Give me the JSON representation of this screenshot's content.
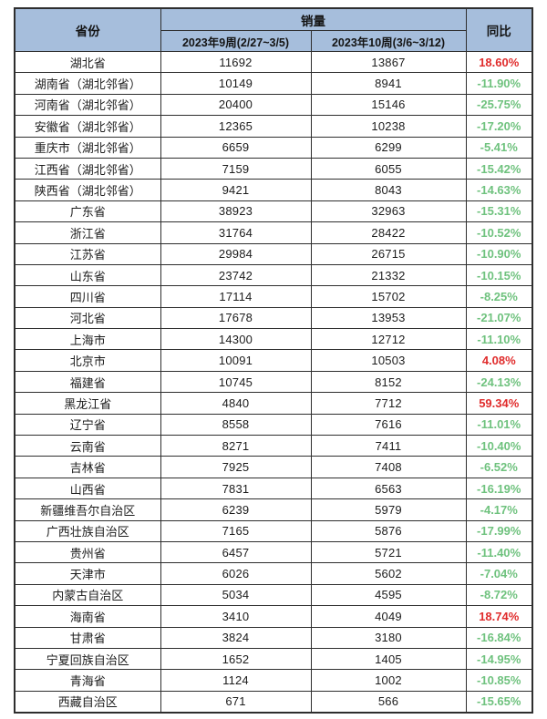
{
  "colors": {
    "header_bg": "#a6bedc",
    "border": "#2e2e2e",
    "positive_pct": "#e02c2c",
    "negative_pct": "#6fc27e"
  },
  "chart_data": {
    "type": "table",
    "header": {
      "province": "省份",
      "sales_group": "销量",
      "week9": "2023年9周(2/27~3/5)",
      "week10": "2023年10周(3/6~3/12)",
      "yoy": "同比"
    },
    "columns": [
      "省份",
      "2023年9周(2/27~3/5)",
      "2023年10周(3/6~3/12)",
      "同比"
    ],
    "rows": [
      {
        "province": "湖北省",
        "week9": 11692,
        "week10": 13867,
        "yoy": "18.60%"
      },
      {
        "province": "湖南省（湖北邻省）",
        "week9": 10149,
        "week10": 8941,
        "yoy": "-11.90%"
      },
      {
        "province": "河南省（湖北邻省）",
        "week9": 20400,
        "week10": 15146,
        "yoy": "-25.75%"
      },
      {
        "province": "安徽省（湖北邻省）",
        "week9": 12365,
        "week10": 10238,
        "yoy": "-17.20%"
      },
      {
        "province": "重庆市（湖北邻省）",
        "week9": 6659,
        "week10": 6299,
        "yoy": "-5.41%"
      },
      {
        "province": "江西省（湖北邻省）",
        "week9": 7159,
        "week10": 6055,
        "yoy": "-15.42%"
      },
      {
        "province": "陕西省（湖北邻省）",
        "week9": 9421,
        "week10": 8043,
        "yoy": "-14.63%"
      },
      {
        "province": "广东省",
        "week9": 38923,
        "week10": 32963,
        "yoy": "-15.31%"
      },
      {
        "province": "浙江省",
        "week9": 31764,
        "week10": 28422,
        "yoy": "-10.52%"
      },
      {
        "province": "江苏省",
        "week9": 29984,
        "week10": 26715,
        "yoy": "-10.90%"
      },
      {
        "province": "山东省",
        "week9": 23742,
        "week10": 21332,
        "yoy": "-10.15%"
      },
      {
        "province": "四川省",
        "week9": 17114,
        "week10": 15702,
        "yoy": "-8.25%"
      },
      {
        "province": "河北省",
        "week9": 17678,
        "week10": 13953,
        "yoy": "-21.07%"
      },
      {
        "province": "上海市",
        "week9": 14300,
        "week10": 12712,
        "yoy": "-11.10%"
      },
      {
        "province": "北京市",
        "week9": 10091,
        "week10": 10503,
        "yoy": "4.08%"
      },
      {
        "province": "福建省",
        "week9": 10745,
        "week10": 8152,
        "yoy": "-24.13%"
      },
      {
        "province": "黑龙江省",
        "week9": 4840,
        "week10": 7712,
        "yoy": "59.34%"
      },
      {
        "province": "辽宁省",
        "week9": 8558,
        "week10": 7616,
        "yoy": "-11.01%"
      },
      {
        "province": "云南省",
        "week9": 8271,
        "week10": 7411,
        "yoy": "-10.40%"
      },
      {
        "province": "吉林省",
        "week9": 7925,
        "week10": 7408,
        "yoy": "-6.52%"
      },
      {
        "province": "山西省",
        "week9": 7831,
        "week10": 6563,
        "yoy": "-16.19%"
      },
      {
        "province": "新疆维吾尔自治区",
        "week9": 6239,
        "week10": 5979,
        "yoy": "-4.17%"
      },
      {
        "province": "广西壮族自治区",
        "week9": 7165,
        "week10": 5876,
        "yoy": "-17.99%"
      },
      {
        "province": "贵州省",
        "week9": 6457,
        "week10": 5721,
        "yoy": "-11.40%"
      },
      {
        "province": "天津市",
        "week9": 6026,
        "week10": 5602,
        "yoy": "-7.04%"
      },
      {
        "province": "内蒙古自治区",
        "week9": 5034,
        "week10": 4595,
        "yoy": "-8.72%"
      },
      {
        "province": "海南省",
        "week9": 3410,
        "week10": 4049,
        "yoy": "18.74%"
      },
      {
        "province": "甘肃省",
        "week9": 3824,
        "week10": 3180,
        "yoy": "-16.84%"
      },
      {
        "province": "宁夏回族自治区",
        "week9": 1652,
        "week10": 1405,
        "yoy": "-14.95%"
      },
      {
        "province": "青海省",
        "week9": 1124,
        "week10": 1002,
        "yoy": "-10.85%"
      },
      {
        "province": "西藏自治区",
        "week9": 671,
        "week10": 566,
        "yoy": "-15.65%"
      }
    ]
  }
}
